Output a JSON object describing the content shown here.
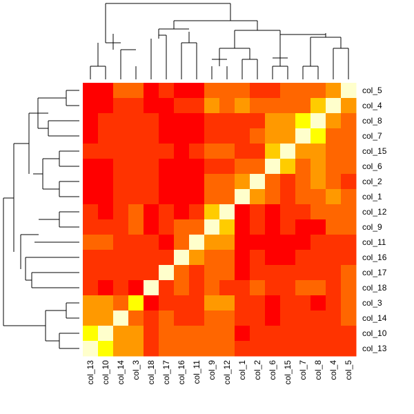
{
  "chart_data": {
    "type": "heatmap",
    "title": "",
    "xlabel": "",
    "ylabel": "",
    "x_labels": [
      "col_13",
      "col_10",
      "col_14",
      "col_3",
      "col_18",
      "col_17",
      "col_16",
      "col_11",
      "col_9",
      "col_12",
      "col_1",
      "col_2",
      "col_6",
      "col_15",
      "col_7",
      "col_8",
      "col_4",
      "col_5"
    ],
    "y_labels": [
      "col_5",
      "col_4",
      "col_8",
      "col_7",
      "col_15",
      "col_6",
      "col_2",
      "col_1",
      "col_12",
      "col_9",
      "col_11",
      "col_16",
      "col_17",
      "col_18",
      "col_3",
      "col_14",
      "col_10",
      "col_13"
    ],
    "color_scale": [
      "#ff0000",
      "#ff3300",
      "#ff6600",
      "#ff9900",
      "#ffcc00",
      "#ffff00",
      "#ffffcc"
    ],
    "color_scale_meaning": "index 0 = red (lowest), index 6 = pale yellow (highest)",
    "values": [
      [
        0,
        0,
        2,
        2,
        0,
        1,
        0,
        0,
        2,
        2,
        2,
        1,
        1,
        2,
        2,
        2,
        3,
        6
      ],
      [
        0,
        0,
        1,
        1,
        0,
        0,
        1,
        1,
        3,
        2,
        3,
        2,
        2,
        2,
        2,
        4,
        6,
        3
      ],
      [
        0,
        1,
        1,
        1,
        1,
        0,
        0,
        0,
        1,
        1,
        1,
        1,
        3,
        3,
        5,
        6,
        3,
        2
      ],
      [
        0,
        1,
        1,
        1,
        1,
        0,
        0,
        0,
        1,
        1,
        1,
        2,
        3,
        3,
        6,
        5,
        2,
        2
      ],
      [
        1,
        1,
        1,
        1,
        1,
        1,
        0,
        1,
        2,
        2,
        1,
        1,
        4,
        6,
        3,
        3,
        2,
        2
      ],
      [
        0,
        0,
        1,
        1,
        1,
        0,
        0,
        0,
        1,
        1,
        2,
        2,
        6,
        4,
        2,
        3,
        2,
        2
      ],
      [
        0,
        0,
        1,
        1,
        1,
        0,
        0,
        0,
        2,
        2,
        3,
        6,
        2,
        1,
        2,
        3,
        2,
        1
      ],
      [
        0,
        0,
        1,
        1,
        1,
        0,
        0,
        0,
        2,
        2,
        6,
        3,
        2,
        1,
        2,
        2,
        3,
        2
      ],
      [
        1,
        0,
        1,
        2,
        0,
        1,
        0,
        1,
        4,
        6,
        0,
        1,
        0,
        1,
        1,
        2,
        2,
        2
      ],
      [
        1,
        1,
        1,
        2,
        0,
        1,
        2,
        2,
        6,
        4,
        0,
        1,
        0,
        1,
        0,
        0,
        2,
        2
      ],
      [
        2,
        2,
        1,
        1,
        1,
        0,
        2,
        6,
        3,
        3,
        0,
        0,
        0,
        0,
        0,
        1,
        1,
        1
      ],
      [
        1,
        1,
        1,
        1,
        1,
        1,
        6,
        3,
        2,
        2,
        0,
        1,
        0,
        0,
        1,
        1,
        1,
        1
      ],
      [
        1,
        1,
        1,
        1,
        1,
        6,
        2,
        1,
        2,
        2,
        0,
        1,
        1,
        1,
        1,
        1,
        1,
        2
      ],
      [
        1,
        0,
        1,
        0,
        6,
        1,
        2,
        1,
        2,
        1,
        1,
        2,
        1,
        1,
        2,
        2,
        1,
        2
      ],
      [
        3,
        3,
        2,
        5,
        0,
        1,
        1,
        1,
        3,
        3,
        1,
        1,
        0,
        1,
        1,
        0,
        1,
        2
      ],
      [
        3,
        3,
        6,
        2,
        1,
        2,
        1,
        1,
        2,
        2,
        1,
        1,
        0,
        1,
        1,
        1,
        1,
        2
      ],
      [
        5,
        6,
        3,
        3,
        1,
        2,
        2,
        2,
        2,
        2,
        0,
        1,
        1,
        1,
        1,
        1,
        1,
        1
      ],
      [
        6,
        5,
        3,
        3,
        1,
        2,
        2,
        2,
        2,
        2,
        1,
        1,
        1,
        1,
        1,
        1,
        1,
        1
      ]
    ],
    "row_dendrogram_order": [
      "col_5",
      "col_4",
      "col_8",
      "col_7",
      "col_15",
      "col_6",
      "col_2",
      "col_1",
      "col_12",
      "col_9",
      "col_11",
      "col_16",
      "col_17",
      "col_18",
      "col_3",
      "col_14",
      "col_10",
      "col_13"
    ],
    "column_dendrogram_order": [
      "col_13",
      "col_10",
      "col_14",
      "col_3",
      "col_18",
      "col_17",
      "col_16",
      "col_11",
      "col_9",
      "col_12",
      "col_1",
      "col_2",
      "col_6",
      "col_15",
      "col_7",
      "col_8",
      "col_4",
      "col_5"
    ],
    "legend": "none",
    "grid": false
  }
}
